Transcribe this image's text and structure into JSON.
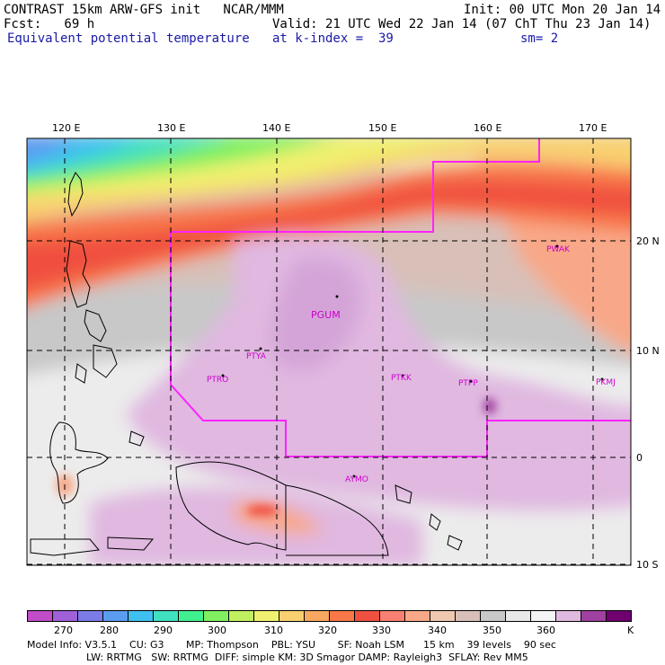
{
  "header": {
    "title": "CONTRAST 15km ARW-GFS init   NCAR/MMM",
    "init": "Init: 00 UTC Mon 20 Jan 14",
    "fcst": "Fcst:   69 h",
    "valid": "Valid: 21 UTC Wed 22 Jan 14 (07 ChT Thu 23 Jan 14)",
    "field": "Equivalent potential temperature",
    "level": "at k-index =  39",
    "smooth": "sm= 2"
  },
  "axes": {
    "lon_labels": [
      "120 E",
      "130 E",
      "140 E",
      "150 E",
      "160 E",
      "170 E"
    ],
    "lat_labels": [
      "20 N",
      "10 N",
      "0",
      "10 S"
    ]
  },
  "stations": [
    "PGUM",
    "PTYA",
    "PTRO",
    "PTKK",
    "PTPP",
    "PKMJ",
    "PWAK",
    "AYMO"
  ],
  "colorbar": {
    "labels": [
      "270",
      "280",
      "290",
      "300",
      "310",
      "320",
      "330",
      "340",
      "350",
      "360"
    ],
    "unit": "K",
    "colors": [
      "#c04cc8",
      "#a060d8",
      "#7c7ce8",
      "#5c9cf0",
      "#40c0f0",
      "#40e0c0",
      "#40f090",
      "#80f060",
      "#c0f060",
      "#f0f070",
      "#f8d070",
      "#f8a860",
      "#f87848",
      "#f05040",
      "#f88070",
      "#f8a888",
      "#f0c8b0",
      "#d8c0b8",
      "#c8c8c8",
      "#e8e8e8",
      "#f4f4f4",
      "#e0b8e0",
      "#a040a0",
      "#700070"
    ]
  },
  "footer": {
    "line1": "Model Info: V3.5.1    CU: G3       MP: Thompson    PBL: YSU       SF: Noah LSM      15 km    39 levels    90 sec",
    "line2": "LW: RRTMG   SW: RRTMG  DIFF: simple KM: 3D Smagor DAMP: Rayleigh3  SFLAY: Rev MM5"
  }
}
